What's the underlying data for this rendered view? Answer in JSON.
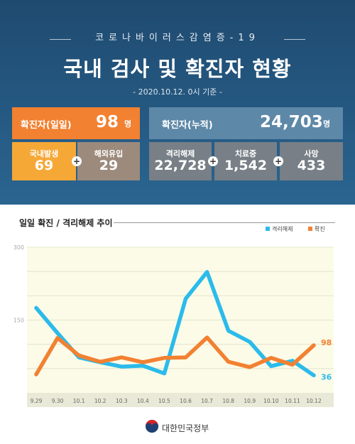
{
  "header": {
    "subtitle": "코로나바이러스감염증-19",
    "title": "국내 검사 및 확진자 현황",
    "date": "- 2020.10.12. 0시 기준 -"
  },
  "daily": {
    "label": "확진자(일일)",
    "value": "98",
    "unit": "명",
    "local_label": "국내발생",
    "local_value": "69",
    "overseas_label": "해외유입",
    "overseas_value": "29"
  },
  "cumulative": {
    "label": "확진자(누적)",
    "value": "24,703",
    "unit": "명",
    "released_label": "격리해제",
    "released_value": "22,728",
    "treatment_label": "치료중",
    "treatment_value": "1,542",
    "deaths_label": "사망",
    "deaths_value": "433"
  },
  "plus_sign": "+",
  "footer": {
    "org": "대한민국정부"
  },
  "colors": {
    "orange": "#f28131",
    "cyan": "#2bbbea",
    "navy": "#1f4a70"
  },
  "chart_data": {
    "type": "line",
    "title": "일일 확진 / 격리해제 추이",
    "categories": [
      "9.29",
      "9.30",
      "10.1",
      "10.2",
      "10.3",
      "10.4",
      "10.5",
      "10.6",
      "10.7",
      "10.8",
      "10.9",
      "10.10",
      "10.11",
      "10.12"
    ],
    "ylim": [
      0,
      300
    ],
    "yticks": [
      150,
      300
    ],
    "legend_position": "top-right",
    "series": [
      {
        "name": "격리해제",
        "color": "#2bbbea",
        "values": [
          175,
          123,
          73,
          63,
          54,
          56,
          40,
          194,
          249,
          128,
          105,
          55,
          66,
          36
        ]
      },
      {
        "name": "확진",
        "color": "#f28131",
        "values": [
          38,
          113,
          77,
          64,
          73,
          63,
          72,
          73,
          114,
          64,
          53,
          72,
          58,
          98
        ]
      }
    ],
    "end_labels": [
      "36",
      "98"
    ]
  }
}
